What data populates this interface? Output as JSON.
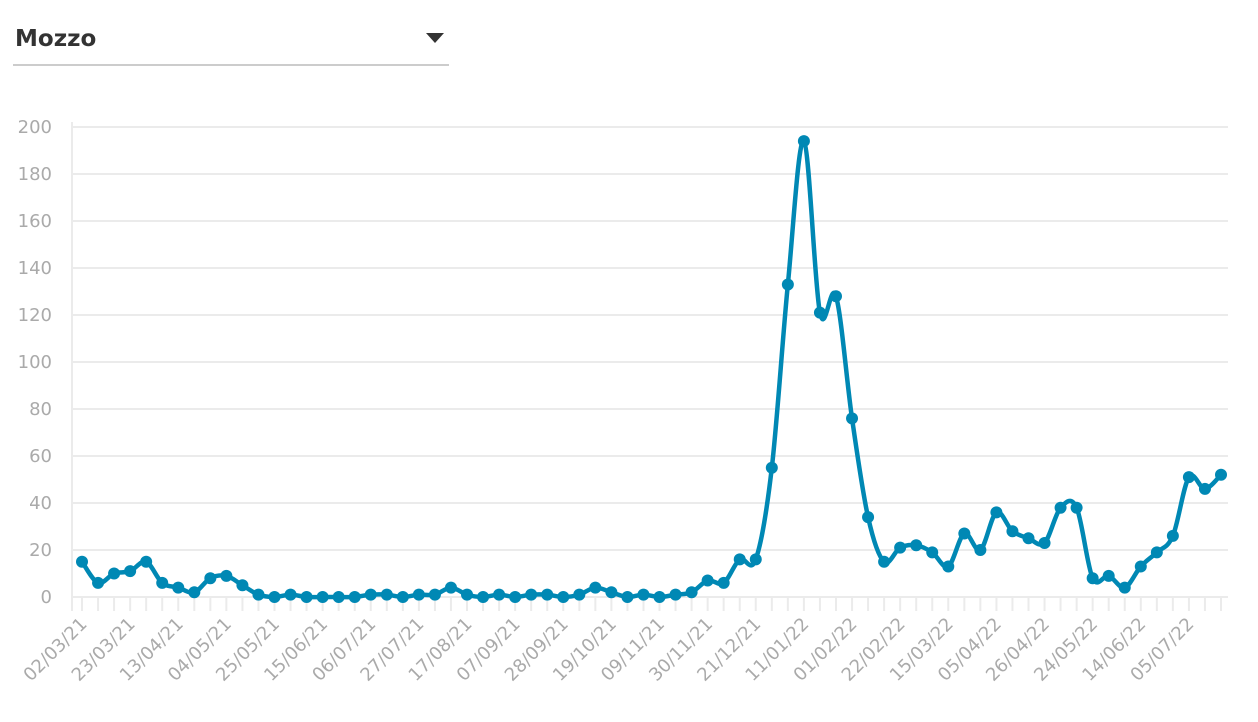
{
  "selector": {
    "selected": "Mozzo",
    "icon": "caret-down-icon"
  },
  "chart_data": {
    "type": "line",
    "title": "",
    "xlabel": "",
    "ylabel": "",
    "ylim": [
      0,
      200
    ],
    "y_ticks": [
      0,
      20,
      40,
      60,
      80,
      100,
      120,
      140,
      160,
      180,
      200
    ],
    "grid": true,
    "line_color": "#0088b4",
    "x_tick_labels": [
      "02/03/21",
      "23/03/21",
      "13/04/21",
      "04/05/21",
      "25/05/21",
      "15/06/21",
      "06/07/21",
      "27/07/21",
      "17/08/21",
      "07/09/21",
      "28/09/21",
      "19/10/21",
      "09/11/21",
      "30/11/21",
      "21/12/21",
      "11/01/22",
      "01/02/22",
      "22/02/22",
      "15/03/22",
      "05/04/22",
      "26/04/22",
      "24/05/22",
      "14/06/22",
      "05/07/22"
    ],
    "x_tick_every": 3,
    "values": [
      15,
      6,
      10,
      11,
      15,
      6,
      4,
      2,
      8,
      9,
      5,
      1,
      0,
      1,
      0,
      0,
      0,
      0,
      1,
      1,
      0,
      1,
      1,
      4,
      1,
      0,
      1,
      0,
      1,
      1,
      0,
      1,
      4,
      2,
      0,
      1,
      0,
      1,
      2,
      7,
      6,
      16,
      16,
      55,
      133,
      194,
      121,
      128,
      76,
      34,
      15,
      21,
      22,
      19,
      13,
      27,
      20,
      36,
      28,
      25,
      23,
      38,
      38,
      8,
      9,
      4,
      13,
      19,
      26,
      51,
      46,
      52
    ]
  }
}
